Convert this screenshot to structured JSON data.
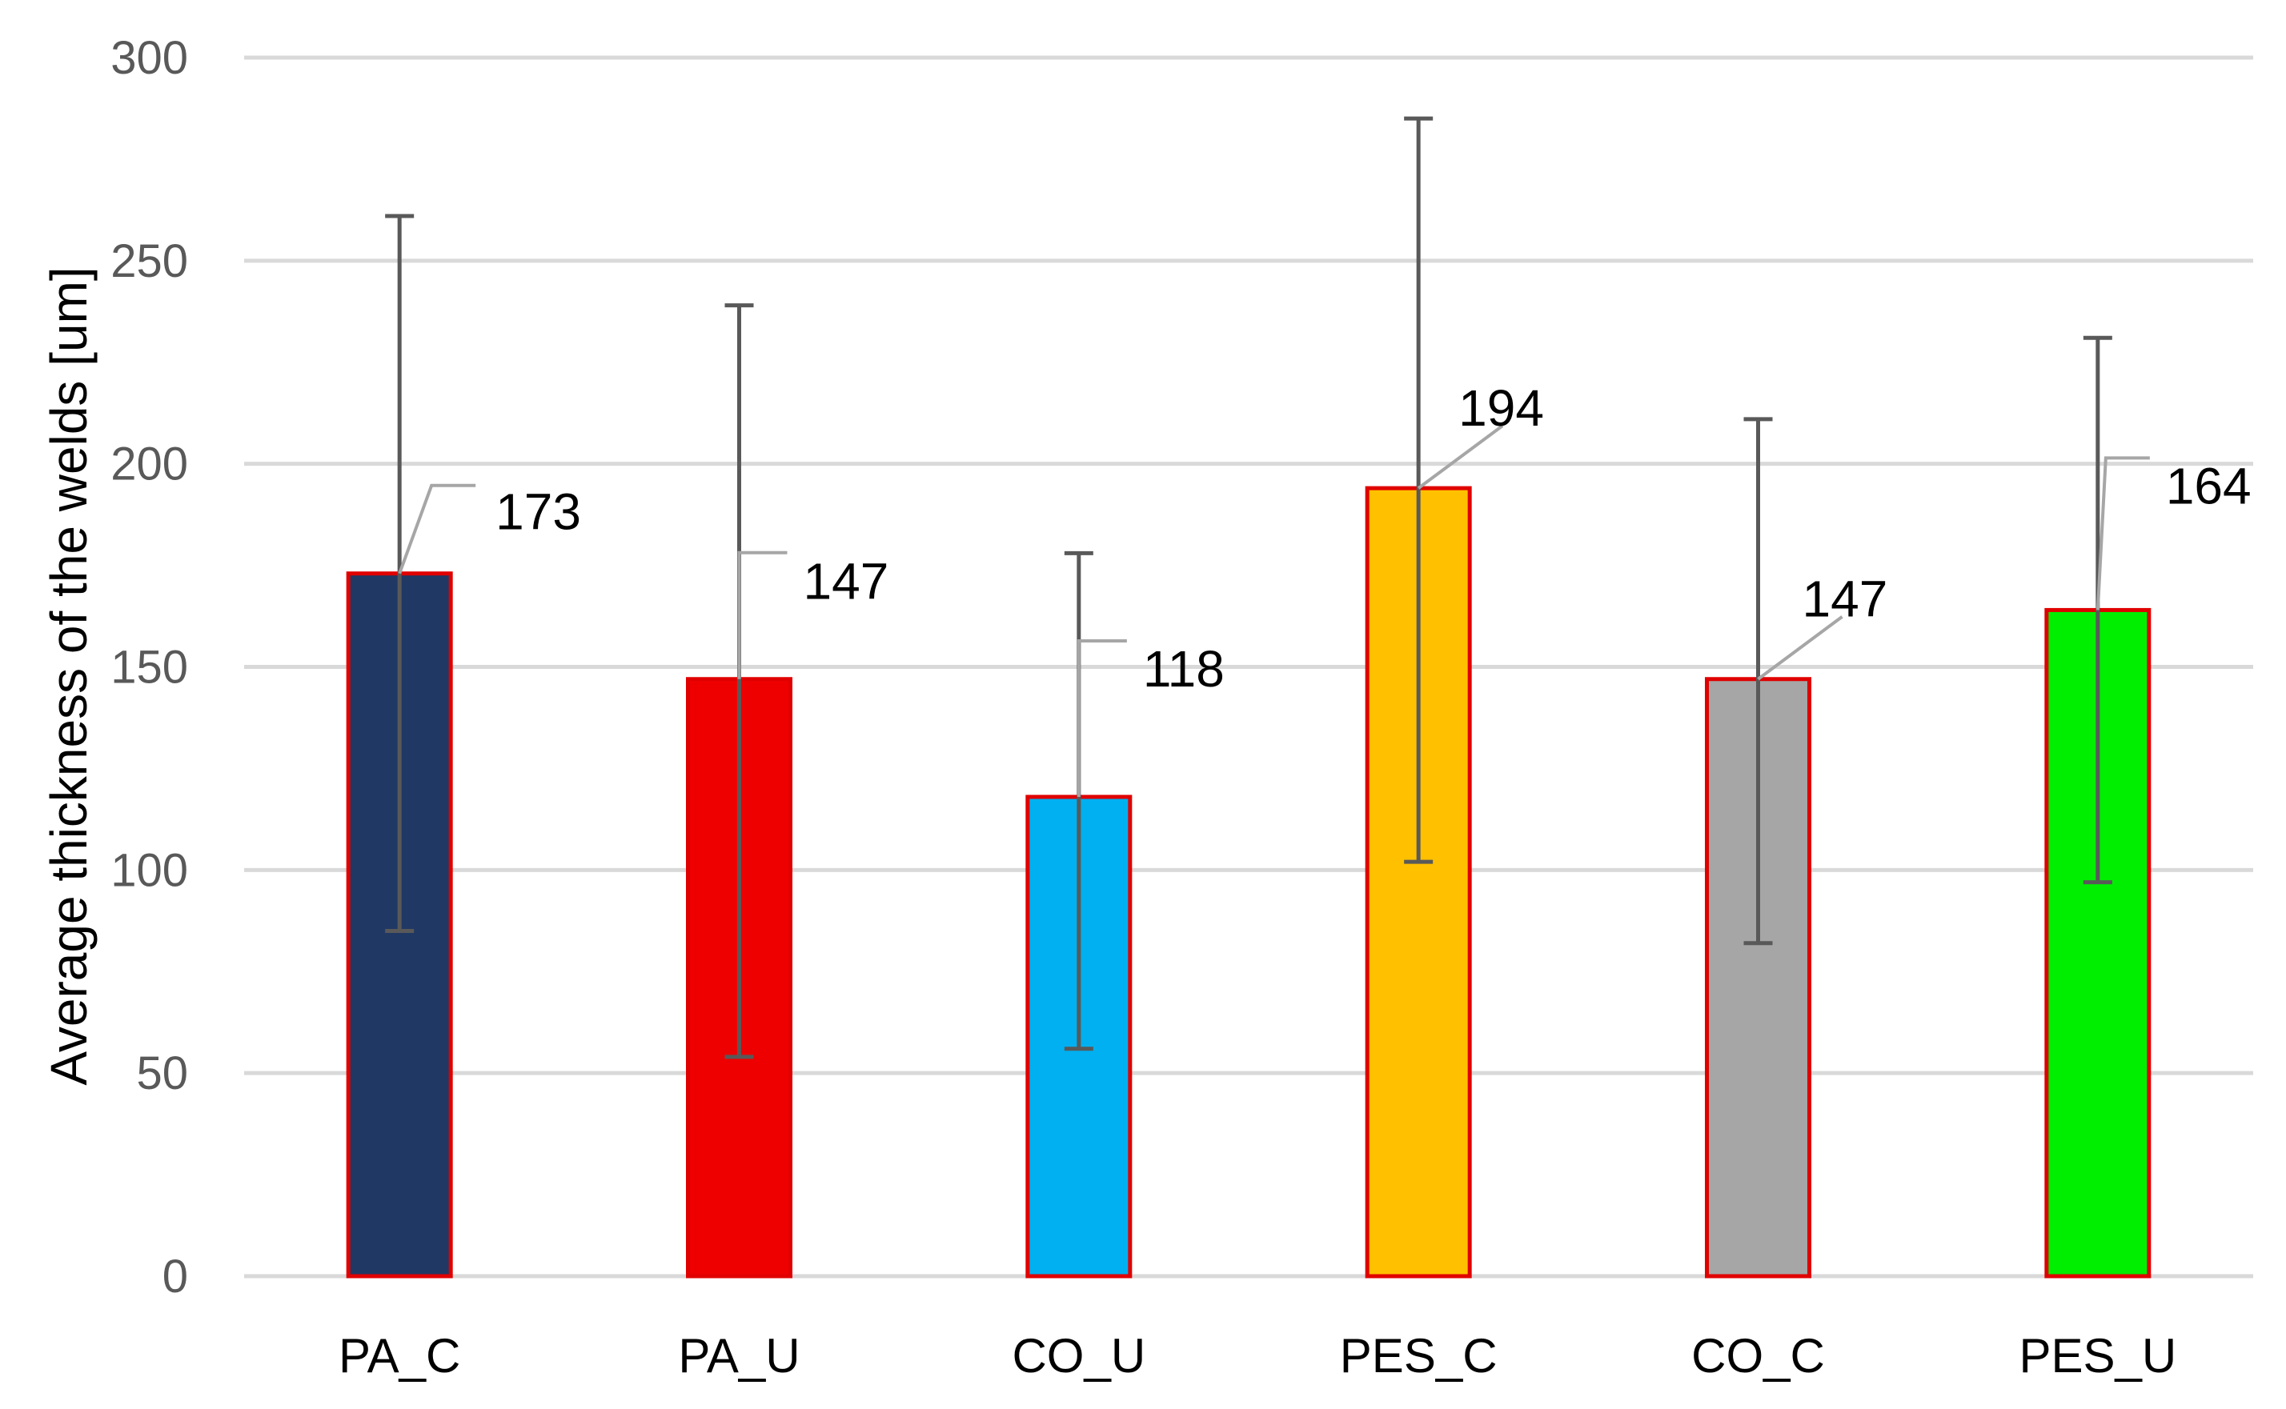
{
  "chart_data": {
    "type": "bar",
    "title": "",
    "xlabel": "",
    "ylabel": "Average  thickness of the welds [um]",
    "ylim": [
      0,
      300
    ],
    "yticks": [
      0,
      50,
      100,
      150,
      200,
      250,
      300
    ],
    "grid": true,
    "legend": "none",
    "categories": [
      "PA_C",
      "PA_U",
      "CO_U",
      "PES_C",
      "CO_C",
      "PES_U"
    ],
    "values": [
      173,
      147,
      118,
      194,
      147,
      164
    ],
    "data_labels": [
      "173",
      "147",
      "118",
      "194",
      "147",
      "164"
    ],
    "error_low": [
      85,
      54,
      56,
      102,
      82,
      97
    ],
    "error_high": [
      261,
      239,
      178,
      285,
      211,
      231
    ],
    "bar_colors": [
      "#203864",
      "#EE0000",
      "#00B0F0",
      "#FFC000",
      "#A6A6A6",
      "#00EE00"
    ],
    "bar_edge_color": "#E00000",
    "error_bar_color": "#595959",
    "grid_color": "#D9D9D9",
    "leader_line_color": "#A6A6A6"
  }
}
